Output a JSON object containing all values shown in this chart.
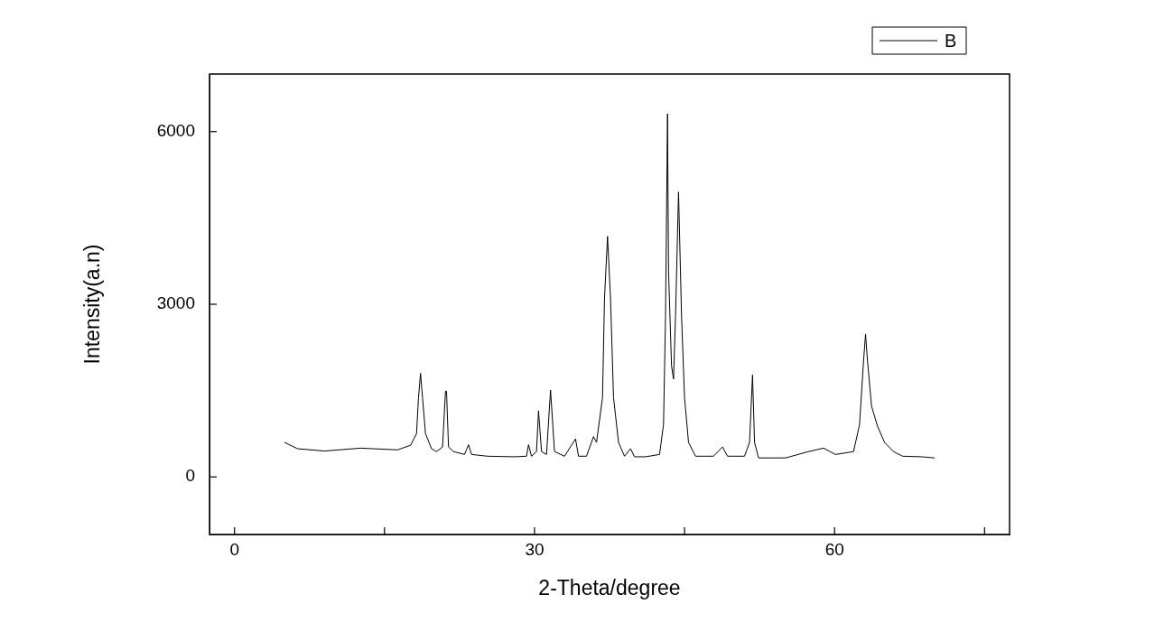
{
  "chart_data": {
    "type": "line",
    "xlabel": "2-Theta/degree",
    "ylabel": "Intensity(a.n)",
    "xlim": [
      -2.5,
      77.5
    ],
    "ylim": [
      -1000,
      7000
    ],
    "xticks": [
      0,
      {
        "value": 15,
        "label": null
      },
      30,
      {
        "value": 45,
        "label": null
      },
      60,
      {
        "value": 75,
        "label": null
      }
    ],
    "yticks": [
      0,
      3000,
      6000
    ],
    "grid": false,
    "legend": "top right",
    "marker": "none",
    "line_style": "solid",
    "series": [
      {
        "name": "B",
        "color": "#000000",
        "x": [
          5.0,
          6.3,
          9.0,
          12.6,
          16.3,
          17.6,
          18.2,
          18.4,
          18.6,
          18.8,
          19.1,
          19.7,
          20.2,
          20.8,
          21.1,
          21.2,
          21.4,
          21.9,
          23.0,
          23.4,
          23.7,
          25.3,
          28.0,
          29.2,
          29.4,
          29.7,
          30.2,
          30.4,
          30.7,
          31.2,
          31.6,
          32.0,
          33.0,
          34.1,
          34.4,
          35.2,
          35.9,
          36.2,
          36.8,
          37.0,
          37.3,
          37.6,
          37.9,
          38.4,
          39.0,
          39.6,
          40.0,
          41.1,
          42.5,
          42.9,
          43.1,
          43.3,
          43.4,
          43.7,
          43.9,
          44.1,
          44.4,
          44.7,
          45.0,
          45.4,
          46.1,
          47.9,
          48.8,
          49.3,
          51.0,
          51.5,
          51.8,
          52.0,
          52.4,
          55.1,
          57.4,
          58.9,
          60.1,
          61.9,
          62.5,
          62.9,
          63.1,
          63.3,
          63.7,
          64.3,
          65.0,
          65.9,
          66.8,
          68.7,
          70.0
        ],
        "values": [
          600,
          490,
          450,
          500,
          470,
          550,
          750,
          1380,
          1800,
          1380,
          750,
          490,
          440,
          520,
          1490,
          1490,
          520,
          440,
          390,
          560,
          390,
          360,
          350,
          360,
          560,
          360,
          440,
          1150,
          440,
          390,
          1510,
          440,
          360,
          660,
          360,
          360,
          700,
          600,
          1380,
          3110,
          4180,
          3110,
          1380,
          600,
          360,
          490,
          350,
          350,
          390,
          910,
          2800,
          6310,
          3580,
          1930,
          1700,
          2800,
          4950,
          2800,
          1380,
          600,
          360,
          360,
          520,
          360,
          360,
          600,
          1770,
          600,
          330,
          330,
          440,
          500,
          390,
          440,
          910,
          2010,
          2480,
          2010,
          1230,
          880,
          600,
          440,
          360,
          350,
          330
        ]
      }
    ]
  }
}
